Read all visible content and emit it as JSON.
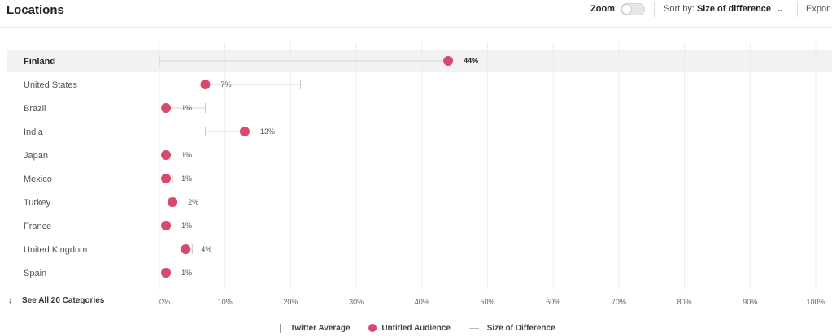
{
  "header": {
    "title": "Locations",
    "zoom_label": "Zoom",
    "sort_prefix": "Sort by:",
    "sort_value": "Size of difference",
    "export_label": "Expor"
  },
  "see_all": {
    "label": "See All 20 Categories",
    "icon": "up-down-arrows-icon"
  },
  "legend": {
    "twitter_average": "Twitter Average",
    "untitled_audience": "Untitled Audience",
    "size_of_difference": "Size of Difference"
  },
  "colors": {
    "audience": "#d9486f",
    "highlight_row": "#f2f2f2",
    "grid": "#ececec",
    "diff_line": "#d6d6d6"
  },
  "chart_data": {
    "type": "dot",
    "x_ticks": [
      "0%",
      "10%",
      "20%",
      "30%",
      "40%",
      "50%",
      "60%",
      "70%",
      "80%",
      "90%",
      "100%"
    ],
    "xlim": [
      0,
      100
    ],
    "highlighted": "Finland",
    "series": [
      {
        "name": "Untitled Audience",
        "values": [
          44,
          7,
          1,
          13,
          1,
          1,
          2,
          1,
          4,
          1
        ]
      },
      {
        "name": "Twitter Average",
        "values": [
          0,
          21.5,
          7,
          7,
          1.5,
          2,
          1.5,
          1.5,
          5,
          1.5
        ]
      }
    ],
    "categories": [
      "Finland",
      "United States",
      "Brazil",
      "India",
      "Japan",
      "Mexico",
      "Turkey",
      "France",
      "United Kingdom",
      "Spain"
    ],
    "value_labels": [
      "44%",
      "7%",
      "1%",
      "13%",
      "1%",
      "1%",
      "2%",
      "1%",
      "4%",
      "1%"
    ]
  }
}
